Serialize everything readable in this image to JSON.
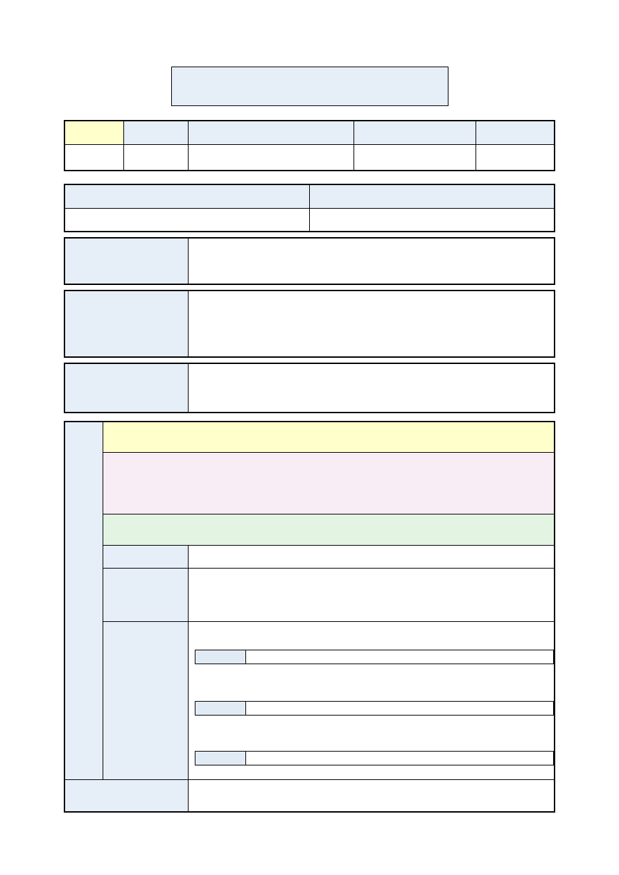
{
  "colors": {
    "header_blue": "#e6eef8",
    "highlight_yellow": "#ffffcc",
    "section_pink": "#f8ecf5",
    "section_green": "#e3f4e3",
    "border": "#000000"
  }
}
